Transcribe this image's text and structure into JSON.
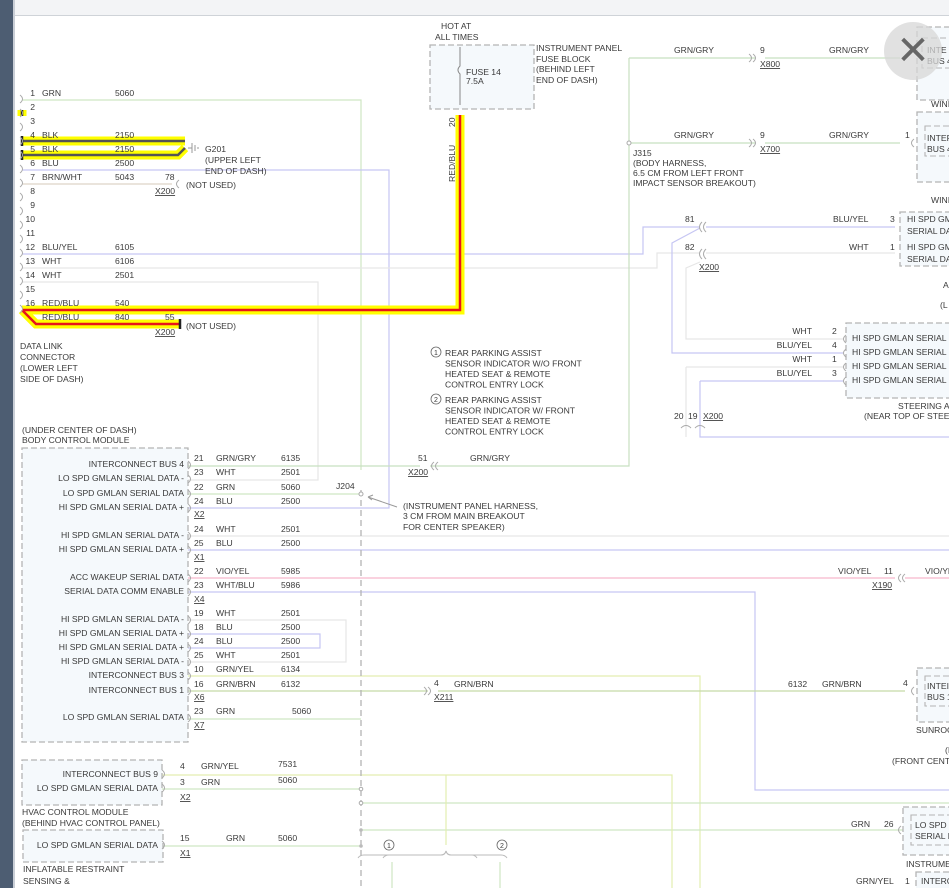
{
  "colors": {
    "highlight": "#ffff00",
    "red_blu": "#e8141b",
    "blk": "#555555",
    "grn": "#cfe6c3",
    "grn_gry": "#c8e0c0",
    "blu": "#c6c6f3",
    "vio_yel": "#f7b8cc",
    "grn_yel": "#e3eeb0",
    "grn_brn": "#c5d9a8",
    "wht": "#e3e3e3",
    "frame": "#4d5d72"
  },
  "close_button": {
    "icon": "close-icon",
    "glyph": "✕"
  },
  "dlc": {
    "title": [
      "DATA LINK",
      "CONNECTOR",
      "(LOWER LEFT",
      "SIDE OF DASH)"
    ],
    "pins": [
      {
        "pin": "1",
        "color": "GRN",
        "circuit": "5060"
      },
      {
        "pin": "2",
        "color": "",
        "circuit": ""
      },
      {
        "pin": "3",
        "color": "",
        "circuit": ""
      },
      {
        "pin": "4",
        "color": "BLK",
        "circuit": "2150"
      },
      {
        "pin": "5",
        "color": "BLK",
        "circuit": "2150"
      },
      {
        "pin": "6",
        "color": "BLU",
        "circuit": "2500"
      },
      {
        "pin": "7",
        "color": "BRN/WHT",
        "circuit": "5043"
      },
      {
        "pin": "8",
        "color": "",
        "circuit": ""
      },
      {
        "pin": "9",
        "color": "",
        "circuit": ""
      },
      {
        "pin": "10",
        "color": "",
        "circuit": ""
      },
      {
        "pin": "11",
        "color": "",
        "circuit": ""
      },
      {
        "pin": "12",
        "color": "BLU/YEL",
        "circuit": "6105"
      },
      {
        "pin": "13",
        "color": "WHT",
        "circuit": "6106"
      },
      {
        "pin": "14",
        "color": "WHT",
        "circuit": "2501"
      },
      {
        "pin": "15",
        "color": "",
        "circuit": ""
      },
      {
        "pin": "16",
        "color": "RED/BLU",
        "circuit": "540"
      },
      {
        "pin": "",
        "color": "RED/BLU",
        "circuit": "840"
      }
    ]
  },
  "g201": {
    "name": "G201",
    "location": [
      "(UPPER LEFT",
      "END OF DASH)"
    ]
  },
  "x200_78": {
    "pin": "78",
    "connector": "X200",
    "note": "(NOT USED)"
  },
  "x200_55": {
    "pin": "55",
    "connector": "X200",
    "note": "(NOT USED)"
  },
  "fuse": {
    "header": [
      "HOT AT",
      "ALL TIMES"
    ],
    "name": "FUSE 14",
    "rating": "7.5A",
    "block": [
      "INSTRUMENT PANEL",
      "FUSE BLOCK",
      "(BEHIND LEFT",
      "END OF DASH)"
    ],
    "pin": "20",
    "wire": "RED/BLU"
  },
  "j315": {
    "name": "J315",
    "desc": [
      "(BODY HARNESS,",
      "6.5 CM FROM LEFT FRONT",
      "IMPACT SENSOR BREAKOUT)"
    ]
  },
  "x800": {
    "wire_left": "GRN/GRY",
    "pin": "9",
    "connector": "X800",
    "wire_right": "GRN/GRY"
  },
  "x700": {
    "wire_left": "GRN/GRY",
    "pin": "9",
    "connector": "X700",
    "wire_right": "GRN/GRY",
    "module_pin": "1"
  },
  "window_modules": {
    "a_lines": [
      "INTE",
      "BUS 4"
    ],
    "b_title": "WINI",
    "b_lines": [
      "INTER",
      "BUS 4"
    ],
    "c_title": "WINI",
    "c_rows": [
      [
        "HI SPD GM",
        "SERIAL DA"
      ],
      [
        "HI SPD GM",
        "SERIAL DA"
      ]
    ],
    "c_under": [
      "A",
      "(L"
    ]
  },
  "x200_81_82": {
    "pin_81": "81",
    "pin_82": "82",
    "connector": "X200",
    "wire_81": "BLU/YEL",
    "module_pin_81": "3",
    "wire_82": "WHT",
    "module_pin_82": "1"
  },
  "steering": {
    "rows": [
      {
        "wire": "WHT",
        "pin": "2",
        "label": "HI SPD GMLAN SERIAL D"
      },
      {
        "wire": "BLU/YEL",
        "pin": "4",
        "label": "HI SPD GMLAN SERIAL D"
      },
      {
        "wire": "WHT",
        "pin": "1",
        "label": "HI SPD GMLAN SERIAL D"
      },
      {
        "wire": "BLU/YEL",
        "pin": "3",
        "label": "HI SPD GMLAN SERIAL D"
      }
    ],
    "title": [
      "STEERING A",
      "(NEAR TOP OF STEEI"
    ],
    "conn_pins": [
      "20",
      "19"
    ],
    "connector": "X200"
  },
  "notes": [
    {
      "num": "1",
      "lines": [
        "REAR PARKING ASSIST",
        "SENSOR INDICATOR W/O FRONT",
        "HEATED SEAT & REMOTE",
        "CONTROL ENTRY LOCK"
      ]
    },
    {
      "num": "2",
      "lines": [
        "REAR PARKING ASSIST",
        "SENSOR INDICATOR W/ FRONT",
        "HEATED SEAT & REMOTE",
        "CONTROL ENTRY LOCK"
      ]
    }
  ],
  "x200_51": {
    "pin": "51",
    "connector": "X200",
    "wire": "GRN/GRY"
  },
  "j204": {
    "name": "J204",
    "desc": [
      "(INSTRUMENT PANEL HARNESS,",
      "3 CM FROM MAIN BREAKOUT",
      "FOR CENTER SPEAKER)"
    ]
  },
  "bcm": {
    "title": [
      "(UNDER CENTER OF DASH)",
      "BODY CONTROL MODULE"
    ],
    "rows": [
      {
        "pin": "21",
        "color": "GRN/GRY",
        "circuit": "6135",
        "label": "INTERCONNECT BUS 4"
      },
      {
        "pin": "23",
        "color": "WHT",
        "circuit": "2501",
        "label": "LO SPD GMLAN SERIAL DATA -"
      },
      {
        "pin": "22",
        "color": "GRN",
        "circuit": "5060",
        "label": "LO SPD GMLAN SERIAL DATA"
      },
      {
        "pin": "24",
        "color": "BLU",
        "circuit": "2500",
        "label": "HI SPD GMLAN SERIAL DATA +"
      },
      {
        "pin": "24",
        "color": "WHT",
        "circuit": "2501",
        "label": "HI SPD GMLAN SERIAL DATA -"
      },
      {
        "pin": "25",
        "color": "BLU",
        "circuit": "2500",
        "label": "HI SPD GMLAN SERIAL DATA +"
      },
      {
        "pin": "22",
        "color": "VIO/YEL",
        "circuit": "5985",
        "label": "ACC WAKEUP SERIAL DATA"
      },
      {
        "pin": "23",
        "color": "WHT/BLU",
        "circuit": "5986",
        "label": "SERIAL DATA COMM ENABLE"
      },
      {
        "pin": "19",
        "color": "WHT",
        "circuit": "2501",
        "label": "HI SPD GMLAN SERIAL DATA -"
      },
      {
        "pin": "18",
        "color": "BLU",
        "circuit": "2500",
        "label": "HI SPD GMLAN SERIAL DATA +"
      },
      {
        "pin": "24",
        "color": "BLU",
        "circuit": "2500",
        "label": "HI SPD GMLAN SERIAL DATA +"
      },
      {
        "pin": "25",
        "color": "WHT",
        "circuit": "2501",
        "label": "HI SPD GMLAN SERIAL DATA -"
      },
      {
        "pin": "10",
        "color": "GRN/YEL",
        "circuit": "6134",
        "label": "INTERCONNECT BUS 3"
      },
      {
        "pin": "16",
        "color": "GRN/BRN",
        "circuit": "6132",
        "label": "INTERCONNECT BUS 1"
      },
      {
        "pin": "23",
        "color": "GRN",
        "circuit": "5060",
        "label": "LO SPD GMLAN SERIAL DATA"
      }
    ],
    "connectors": [
      "X2",
      "X1",
      "X4",
      "X6",
      "X7"
    ]
  },
  "x190": {
    "wire_left": "VIO/YEL",
    "pin": "11",
    "connector": "X190",
    "wire_right": "VIO/YE"
  },
  "x211": {
    "pin": "4",
    "connector": "X211",
    "wire": "GRN/BRN"
  },
  "sunroof": {
    "circuit": "6132",
    "wire": "GRN/BRN",
    "pin": "4",
    "lines": [
      "INTEI",
      "BUS 1"
    ],
    "title": "SUNROO",
    "under": [
      "(I",
      "(FRONT CENT"
    ]
  },
  "instrument": {
    "wire": "GRN",
    "pin": "26",
    "lines": [
      "LO SPD",
      "SERIAL I"
    ],
    "title": "INSTRUME",
    "wire2": "GRN/YEL",
    "pin2": "1",
    "line2": "INTERC"
  },
  "hvac": {
    "rows": [
      {
        "pin": "4",
        "color": "GRN/YEL",
        "circuit": "7531",
        "label": "INTERCONNECT BUS 9"
      },
      {
        "pin": "3",
        "color": "GRN",
        "circuit": "5060",
        "label": "LO SPD GMLAN SERIAL DATA"
      }
    ],
    "connector": "X2",
    "title": [
      "HVAC CONTROL MODULE",
      "(BEHIND HVAC CONTROL PANEL)"
    ]
  },
  "inflatable": {
    "rows": [
      {
        "pin": "15",
        "color": "GRN",
        "circuit": "5060",
        "label": "LO SPD GMLAN SERIAL DATA"
      }
    ],
    "connector": "X1",
    "title": [
      "INFLATABLE RESTRAINT",
      "SENSING &"
    ]
  },
  "option_markers": [
    "1",
    "2"
  ]
}
